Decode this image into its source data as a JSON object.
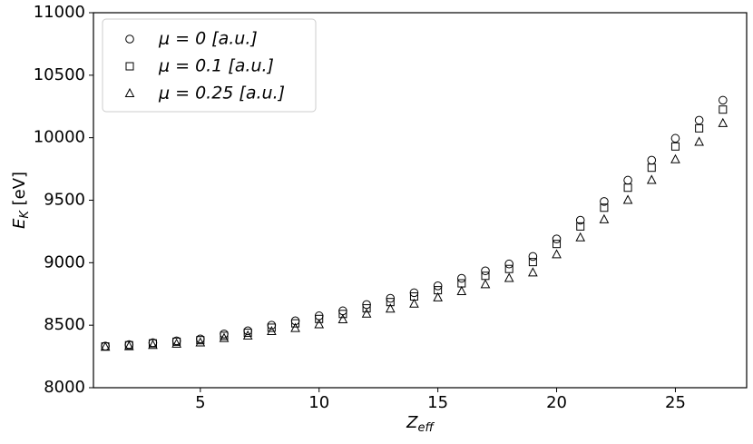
{
  "chart_data": {
    "type": "scatter",
    "xlabel": {
      "main": "Z",
      "sub": "eff"
    },
    "ylabel": {
      "main": "E",
      "sub": "K",
      "rest": " [eV]"
    },
    "x": [
      1,
      2,
      3,
      4,
      5,
      6,
      7,
      8,
      9,
      10,
      11,
      12,
      13,
      14,
      15,
      16,
      17,
      18,
      19,
      20,
      21,
      22,
      23,
      24,
      25,
      26,
      27
    ],
    "series": [
      {
        "name": "μ = 0 [a.u.]",
        "color": "#000000",
        "marker": "circle",
        "values": [
          8333,
          8345,
          8360,
          8375,
          8390,
          8430,
          8455,
          8500,
          8535,
          8575,
          8615,
          8665,
          8715,
          8760,
          8815,
          8875,
          8935,
          8990,
          9050,
          9190,
          9340,
          9490,
          9660,
          9820,
          9995,
          10140,
          10300
        ]
      },
      {
        "name": "μ = 0.1 [a.u.]",
        "color": "#000000",
        "marker": "square",
        "values": [
          8330,
          8340,
          8355,
          8368,
          8380,
          8415,
          8440,
          8480,
          8515,
          8550,
          8590,
          8635,
          8685,
          8730,
          8780,
          8835,
          8895,
          8950,
          9005,
          9150,
          9290,
          9440,
          9600,
          9760,
          9930,
          10075,
          10225
        ]
      },
      {
        "name": "μ = 0.25 [a.u.]",
        "color": "#000000",
        "marker": "triangle",
        "values": [
          8325,
          8330,
          8340,
          8350,
          8360,
          8395,
          8415,
          8450,
          8475,
          8505,
          8545,
          8590,
          8630,
          8670,
          8720,
          8770,
          8825,
          8875,
          8920,
          9065,
          9200,
          9345,
          9500,
          9660,
          9825,
          9965,
          10115
        ]
      }
    ],
    "xlim": [
      0.5,
      28
    ],
    "xticks": [
      5,
      10,
      15,
      20,
      25
    ],
    "ylim": [
      8000,
      11000
    ],
    "yticks": [
      8000,
      8500,
      9000,
      9500,
      10000,
      10500,
      11000
    ],
    "legend": "upper left"
  }
}
